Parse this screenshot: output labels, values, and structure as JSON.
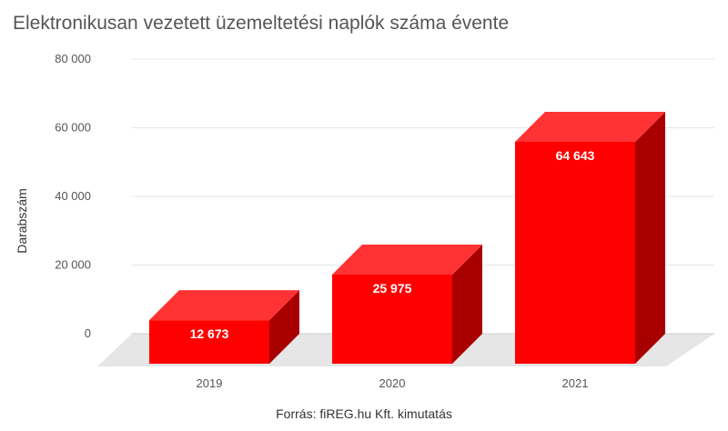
{
  "chart_data": {
    "type": "bar",
    "title": "Elektronikusan vezetett üzemeltetési naplók száma évente",
    "xlabel": "",
    "ylabel": "Darabszám",
    "categories": [
      "2019",
      "2020",
      "2021"
    ],
    "values": [
      12673,
      25975,
      64643
    ],
    "data_labels": [
      "12 673",
      "25 975",
      "64 643"
    ],
    "y_ticks": [
      0,
      20000,
      40000,
      60000,
      80000
    ],
    "y_tick_labels": [
      "0",
      "20 000",
      "40 000",
      "60 000",
      "80 000"
    ],
    "ylim": [
      0,
      80000
    ],
    "grid": true,
    "legend": "none",
    "style": "3d-bar",
    "colors": {
      "bar_front": "#ff0000",
      "bar_top": "#ff3333",
      "bar_side": "#a80000",
      "floor": "#e6e6e6",
      "gridline": "#e5e5e5"
    }
  },
  "source_note": "Forrás: fiREG.hu Kft. kimutatás"
}
